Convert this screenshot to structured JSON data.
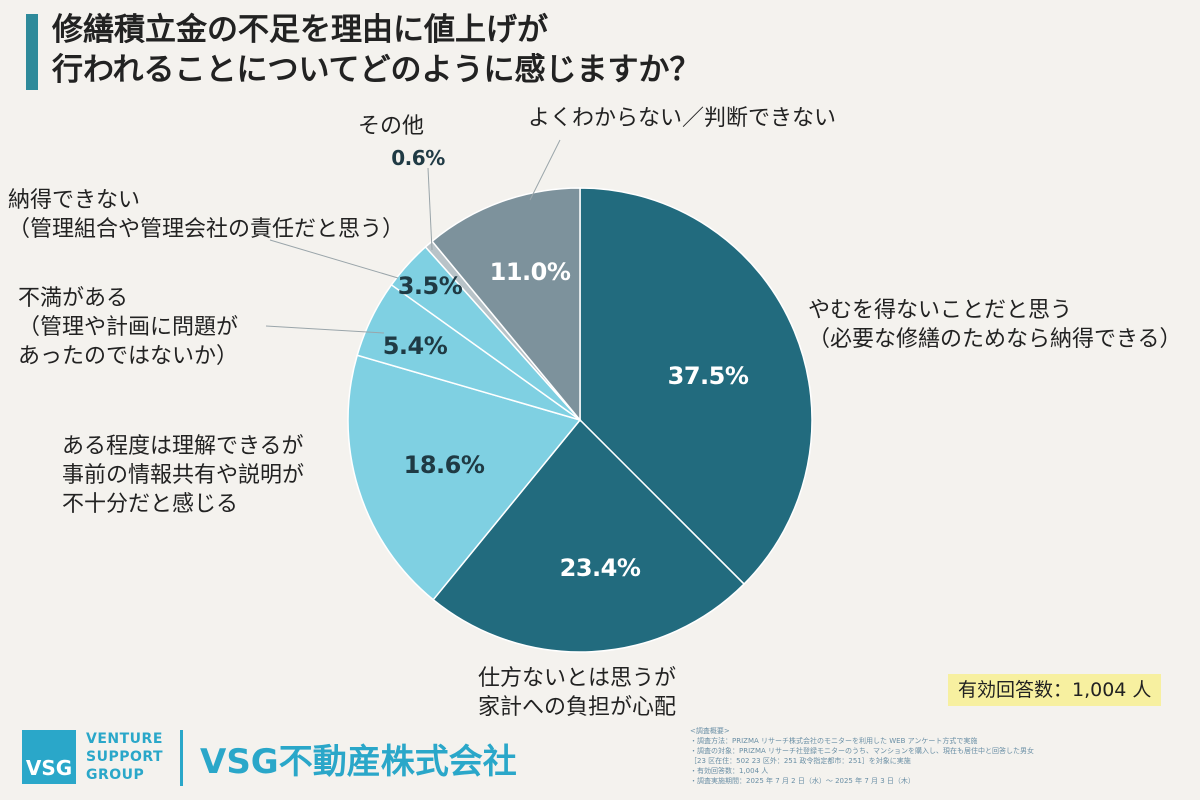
{
  "title": {
    "line1": "修繕積立金の不足を理由に値上げが",
    "line2": "行われることについてどのように感じますか？"
  },
  "chart_data": {
    "type": "pie",
    "start": "12 o'clock",
    "direction": "clockwise",
    "slices": [
      {
        "label_lines": [
          "やむを得ないことだと思う",
          "（必要な修繕のためなら納得できる）"
        ],
        "value": 37.5,
        "value_label": "37.5%",
        "color": "#226b7e"
      },
      {
        "label_lines": [
          "仕方ないとは思うが",
          "家計への負担が心配"
        ],
        "value": 23.4,
        "value_label": "23.4%",
        "color": "#226b7e"
      },
      {
        "label_lines": [
          "ある程度は理解できるが",
          "事前の情報共有や説明が",
          "不十分だと感じる"
        ],
        "value": 18.6,
        "value_label": "18.6%",
        "color": "#7fd0e2"
      },
      {
        "label_lines": [
          "不満がある",
          "（管理や計画に問題が",
          "あったのではないか）"
        ],
        "value": 5.4,
        "value_label": "5.4%",
        "color": "#7fd0e2"
      },
      {
        "label_lines": [
          "納得できない",
          "（管理組合や管理会社の責任だと思う）"
        ],
        "value": 3.5,
        "value_label": "3.5%",
        "color": "#7fd0e2"
      },
      {
        "label_lines": [
          "その他"
        ],
        "value": 0.6,
        "value_label": "0.6%",
        "color": "#b8c3c8"
      },
      {
        "label_lines": [
          "よくわからない／判断できない"
        ],
        "value": 11.0,
        "value_label": "11.0%",
        "color": "#7d929c"
      }
    ]
  },
  "respondents": "有効回答数：1,004 人",
  "logo": {
    "mark": "VSG",
    "line1": "VENTURE",
    "line2": "SUPPORT",
    "line3": "GROUP",
    "company": "VSG不動産株式会社"
  },
  "survey_note": {
    "heading": "<調査概要>",
    "method": "・調査方法：PRIZMA リサーチ株式会社のモニターを利用した WEB アンケート方式で実施",
    "target1": "・調査の対象：PRIZMA リサーチ社登録モニターのうち、マンションを購入し、現在も居住中と回答した男女",
    "target2": "［23 区在住：502 23 区外：251 政令指定都市：251］を対象に実施",
    "count": "・有効回答数：1,004 人",
    "period": "・調査実施期間：2025 年 7 月 2 日（水）〜 2025 年 7 月 3 日（木）"
  }
}
